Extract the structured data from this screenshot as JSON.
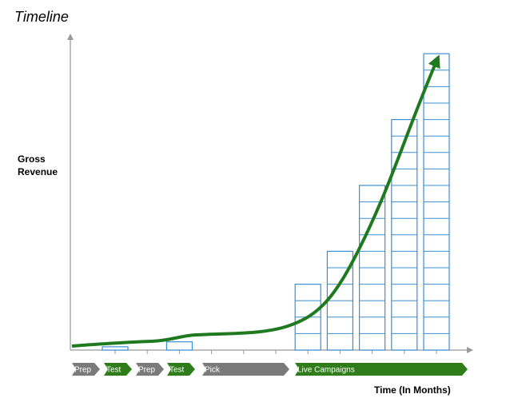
{
  "chart_data": {
    "type": "bar",
    "title": "Timeline",
    "y_label": [
      "Gross",
      "Revenue"
    ],
    "x_label": "Time (In Months)",
    "categories": [
      null,
      null,
      null,
      null,
      null,
      null,
      null,
      null,
      null,
      null,
      null
    ],
    "values": [
      0.2,
      0,
      0.5,
      0,
      0,
      0,
      4,
      6,
      10,
      14,
      18
    ],
    "color": "#3b8fd4",
    "trend_color": "#1f7a1f",
    "phases": [
      {
        "label": "Prep",
        "color": "#7a7a7a"
      },
      {
        "label": "Test",
        "color": "#2e7d1a"
      },
      {
        "label": "Prep",
        "color": "#7a7a7a"
      },
      {
        "label": "Test",
        "color": "#2e7d1a"
      },
      {
        "label": "Pick",
        "color": "#7a7a7a"
      },
      {
        "label": "Live Campaigns",
        "color": "#2e7d1a"
      }
    ]
  }
}
